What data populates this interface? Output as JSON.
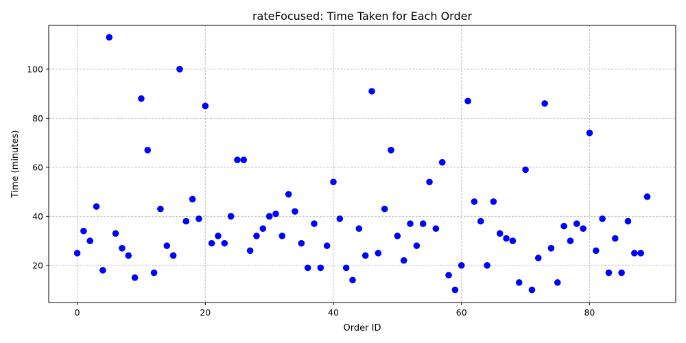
{
  "chart_data": {
    "type": "scatter",
    "title": "rateFocused: Time Taken for Each Order",
    "xlabel": "Order ID",
    "ylabel": "Time (minutes)",
    "xlim": [
      -4.45,
      93.45
    ],
    "ylim": [
      4.85,
      117.85
    ],
    "xticks": [
      0,
      20,
      40,
      60,
      80
    ],
    "yticks": [
      20,
      40,
      60,
      80,
      100
    ],
    "grid": true,
    "point_color": "#0000ff",
    "x": [
      0,
      1,
      2,
      3,
      4,
      5,
      6,
      7,
      8,
      9,
      10,
      11,
      12,
      13,
      14,
      15,
      16,
      17,
      18,
      19,
      20,
      21,
      22,
      23,
      24,
      25,
      26,
      27,
      28,
      29,
      30,
      31,
      32,
      33,
      34,
      35,
      36,
      37,
      38,
      39,
      40,
      41,
      42,
      43,
      44,
      45,
      46,
      47,
      48,
      49,
      50,
      51,
      52,
      53,
      54,
      55,
      56,
      57,
      58,
      59,
      60,
      61,
      62,
      63,
      64,
      65,
      66,
      67,
      68,
      69,
      70,
      71,
      72,
      73,
      74,
      75,
      76,
      77,
      78,
      79,
      80,
      81,
      82,
      83,
      84,
      85,
      86,
      87,
      88,
      89
    ],
    "y": [
      25,
      34,
      30,
      44,
      18,
      113,
      33,
      27,
      24,
      15,
      88,
      67,
      17,
      43,
      28,
      24,
      100,
      38,
      47,
      39,
      85,
      29,
      32,
      29,
      40,
      63,
      63,
      26,
      32,
      35,
      40,
      41,
      32,
      49,
      42,
      29,
      19,
      37,
      19,
      28,
      54,
      39,
      19,
      14,
      35,
      24,
      91,
      25,
      43,
      67,
      32,
      22,
      37,
      28,
      37,
      54,
      35,
      62,
      16,
      10,
      20,
      87,
      46,
      38,
      20,
      46,
      33,
      31,
      30,
      13,
      59,
      10,
      23,
      86,
      27,
      13,
      36,
      30,
      37,
      35,
      74,
      26,
      39,
      17,
      31,
      17,
      38,
      25,
      25,
      48
    ]
  }
}
